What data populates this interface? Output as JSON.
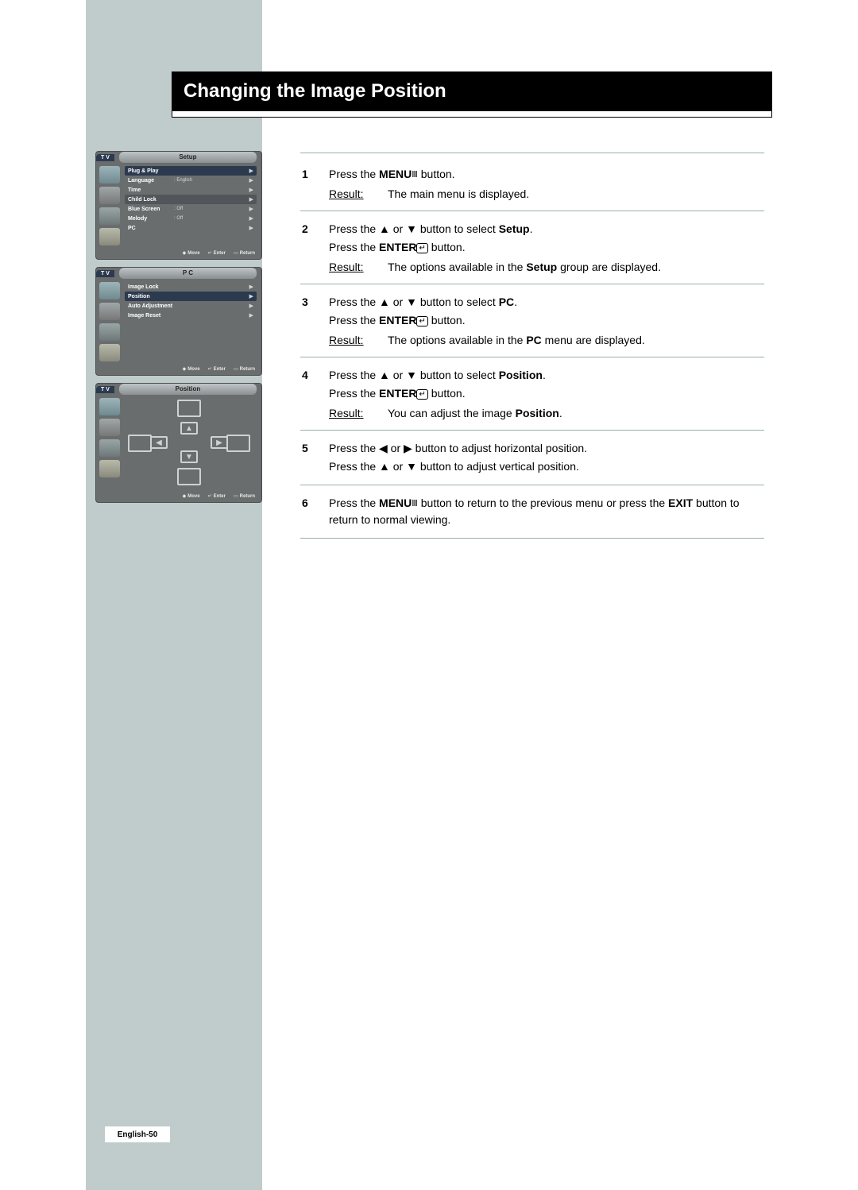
{
  "colors": {
    "sidebar_bg": "#c0cccc",
    "title_bg": "#000000",
    "title_text": "#ffffff",
    "rule": "#98aeb0",
    "osd_bg": "#6a6d6e",
    "osd_highlight": "#2c3a4f"
  },
  "title": "Changing the Image Position",
  "page_number": "English-50",
  "osd1": {
    "tv": "T V",
    "title": "Setup",
    "items": [
      {
        "key": "Plug & Play",
        "val": "",
        "hl": true
      },
      {
        "key": "Language",
        "val": ": English"
      },
      {
        "key": "Time",
        "val": ""
      },
      {
        "key": "Child Lock",
        "val": "",
        "dim": true
      },
      {
        "key": "Blue Screen",
        "val": ": Off"
      },
      {
        "key": "Melody",
        "val": ": Off"
      },
      {
        "key": "PC",
        "val": ""
      }
    ],
    "footer": {
      "move": "Move",
      "enter": "Enter",
      "return": "Return"
    }
  },
  "osd2": {
    "tv": "T V",
    "title": "P C",
    "items": [
      {
        "key": "Image Lock",
        "val": ""
      },
      {
        "key": "Position",
        "val": "",
        "hl": true
      },
      {
        "key": "Auto Adjustment",
        "val": ""
      },
      {
        "key": "Image Reset",
        "val": ""
      }
    ],
    "footer": {
      "move": "Move",
      "enter": "Enter",
      "return": "Return"
    }
  },
  "osd3": {
    "tv": "T V",
    "title": "Position",
    "footer": {
      "move": "Move",
      "enter": "Enter",
      "return": "Return"
    }
  },
  "steps": [
    {
      "num": "1",
      "lines": [
        {
          "pre": "Press the ",
          "b": "MENU",
          "glyph": "menu",
          "post": " button."
        }
      ],
      "result": {
        "label": "Result:",
        "text_parts": [
          {
            "t": "The main menu is displayed."
          }
        ]
      }
    },
    {
      "num": "2",
      "lines": [
        {
          "pre": "Press the ▲ or ▼ button to select ",
          "b": "Setup",
          "post": "."
        },
        {
          "pre": "Press the ",
          "b": "ENTER",
          "glyph": "enter",
          "post": " button."
        }
      ],
      "result": {
        "label": "Result:",
        "text_parts": [
          {
            "t": "The options available in the "
          },
          {
            "b": "Setup"
          },
          {
            "t": " group are displayed."
          }
        ]
      }
    },
    {
      "num": "3",
      "lines": [
        {
          "pre": "Press the ▲ or ▼ button to select ",
          "b": "PC",
          "post": "."
        },
        {
          "pre": "Press the ",
          "b": "ENTER",
          "glyph": "enter",
          "post": " button."
        }
      ],
      "result": {
        "label": "Result:",
        "text_parts": [
          {
            "t": "The options available in the "
          },
          {
            "b": "PC"
          },
          {
            "t": " menu are displayed."
          }
        ]
      }
    },
    {
      "num": "4",
      "lines": [
        {
          "pre": "Press the ▲ or ▼ button to select ",
          "b": "Position",
          "post": "."
        },
        {
          "pre": "Press the ",
          "b": "ENTER",
          "glyph": "enter",
          "post": " button."
        }
      ],
      "result": {
        "label": "Result:",
        "text_parts": [
          {
            "t": "You can adjust the image "
          },
          {
            "b": "Position"
          },
          {
            "t": "."
          }
        ]
      }
    },
    {
      "num": "5",
      "lines": [
        {
          "pre": "Press the ◀ or ▶ button to adjust horizontal position."
        },
        {
          "pre": "Press the ▲ or ▼ button to adjust vertical position."
        }
      ]
    },
    {
      "num": "6",
      "lines": [
        {
          "pre": "Press the ",
          "b": "MENU",
          "glyph": "menu",
          "post": " button to return to the previous menu or press the ",
          "b2": "EXIT",
          "post2": " button to return to normal viewing."
        }
      ]
    }
  ]
}
